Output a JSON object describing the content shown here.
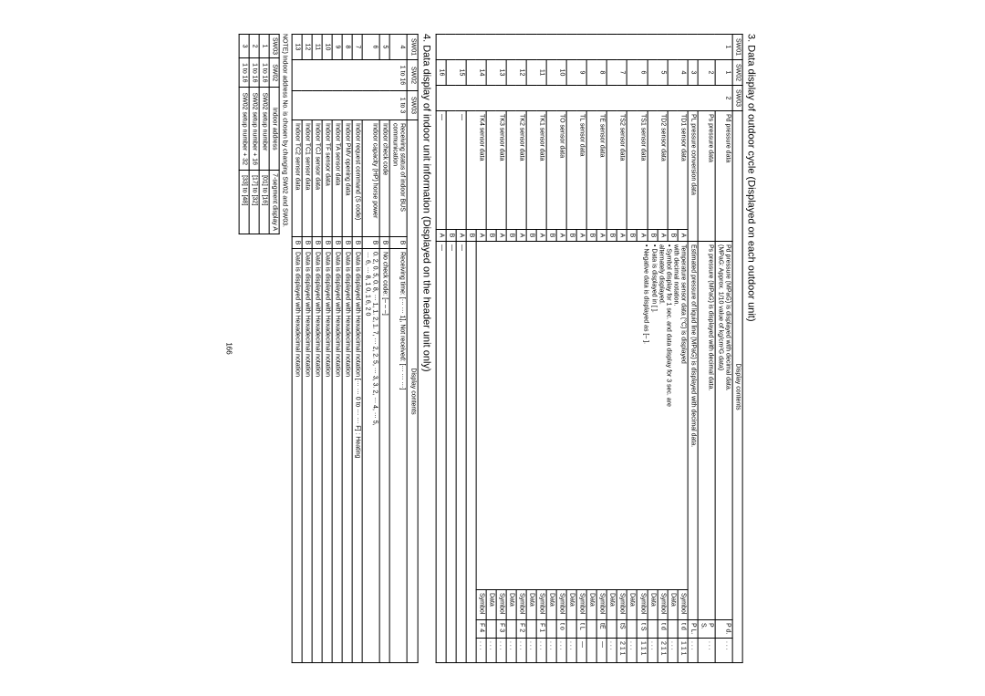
{
  "page_number": "166",
  "h1": "3. Data display of outdoor cycle (Displayed on each outdoor unit)",
  "h2": "4. Data display of indoor unit information (Displayed on the header unit only)",
  "note": "NOTE) Indoor address No. is chosen by changing SW02 and SW03.",
  "hdr": {
    "sw01": "SW01",
    "sw02": "SW02",
    "sw03": "SW03",
    "disp": "Display contents",
    "symbol": "Symbol",
    "data": "Data",
    "a": "A",
    "b": "B"
  },
  "t1": [
    {
      "sw01": "1",
      "sw02": "1",
      "sw03": "2",
      "d1": "Pd pressure data",
      "dc": "Pd pressure (MPaG) is displayed with decimal data.\n(MPaG: Approx. 1/10 value of kg/cm²G data)",
      "a": "P d.",
      "b": ". . ."
    },
    {
      "sw02": "2",
      "d1": "Ps pressure data",
      "dc": "Ps pressure (MPaG) is displayed with decimal data.",
      "a": "P S.",
      "b": ". . ."
    },
    {
      "sw02": "3",
      "d1": "PL pressure conversion data",
      "dc": "Estimated pressure of liquid line (MPaG) is displayed with decimal data.",
      "a": "P L.",
      "b": ". . ."
    },
    {
      "sw02": "4",
      "d1": "TD1 sensor data",
      "ab": "A",
      "dc": "Temperature sensor data (°C) is displayed\nwith decimal notation.\n• Symbol display for 1 sec. and data display for 3 sec. are\n  alternately displayed.\n• Data is displayed in [     ].\n• Negative data is displayed as [–     ].",
      "sym": "Symbol",
      "sa": "t d",
      "sb": "1 1 1"
    },
    {
      "ab": "B",
      "sym": "Data",
      "sa": "",
      "sb": ". . ."
    },
    {
      "sw02": "5",
      "d1": "TD2 sensor data",
      "ab": "A",
      "sym": "Symbol",
      "sa": "t d",
      "sb": "2 1 1"
    },
    {
      "ab": "B",
      "sym": "Data",
      "sa": "",
      "sb": ". . ."
    },
    {
      "sw02": "6",
      "d1": "TS1 sensor data",
      "ab": "A",
      "sym": "Symbol",
      "sa": "t S",
      "sb": "1 1 1"
    },
    {
      "ab": "B",
      "sym": "Data",
      "sa": "",
      "sb": ". . ."
    },
    {
      "sw02": "7",
      "d1": "TS2 sensor data",
      "ab": "A",
      "sym": "Symbol",
      "sa": "tS",
      "sb": "2 1 1"
    },
    {
      "ab": "B",
      "sym": "Data",
      "sa": "",
      "sb": ". . ."
    },
    {
      "sw02": "8",
      "d1": "TE sensor data",
      "ab": "A",
      "sym": "Symbol",
      "sa": "tE",
      "sb": "—"
    },
    {
      "ab": "B",
      "sym": "Data",
      "sa": "",
      "sb": ""
    },
    {
      "sw02": "9",
      "d1": "TL sensor data",
      "ab": "A",
      "sym": "Symbol",
      "sa": "t L",
      "sb": "—"
    },
    {
      "ab": "B",
      "sym": "Data",
      "sa": "",
      "sb": ". . ."
    },
    {
      "sw02": "10",
      "d1": "TO sensor data",
      "ab": "A",
      "sym": "Symbol",
      "sa": "t o",
      "sb": ". . ."
    },
    {
      "ab": "B",
      "sym": "Data",
      "sa": "",
      "sb": ". . ."
    },
    {
      "sw02": "11",
      "d1": "TK1 sensor data",
      "ab": "A",
      "sym": "Symbol",
      "sa": "F 1",
      "sb": ". . ."
    },
    {
      "ab": "B",
      "sym": "Data",
      "sa": "",
      "sb": ". . ."
    },
    {
      "sw02": "12",
      "d1": "TK2 sensor data",
      "ab": "A",
      "sym": "Symbol",
      "sa": "F 2",
      "sb": ". . ."
    },
    {
      "ab": "B",
      "sym": "Data",
      "sa": "",
      "sb": ". . ."
    },
    {
      "sw02": "13",
      "d1": "TK3 sensor data",
      "ab": "A",
      "sym": "Symbol",
      "sa": "F 3",
      "sb": ". . ."
    },
    {
      "ab": "B",
      "sym": "Data",
      "sa": "",
      "sb": ". . ."
    },
    {
      "sw02": "14",
      "d1": "TK4 sensor data",
      "ab": "A",
      "sym": "Symbol",
      "sa": "F 4",
      "sb": ". . ."
    },
    {
      "ab": "B",
      "sym": "Data",
      "sa": "",
      "sb": ". . ."
    },
    {
      "sw02": "15",
      "d1": "—",
      "ab": "A",
      "dc": "—",
      "plain": true
    },
    {
      "ab": "B",
      "dc": "—",
      "plain": true
    },
    {
      "sw02": "16",
      "d1": "—",
      "ab": "A",
      "dc": "—",
      "plain": true
    },
    {
      "ab": "B",
      "dc": "—",
      "plain": true
    }
  ],
  "t2": [
    {
      "sw01": "4",
      "sw02": "1 to 16",
      "sw03": "1 to 3",
      "d1": "Receiving status of indoor BUS communication",
      "ab": "B",
      "dc": "Receiving time: [··· ··· 1], Not received: [··· ··· ···]"
    },
    {
      "sw01": "5",
      "d1": "Indoor check code",
      "ab": "B",
      "dc": "No check code: [– – –]"
    },
    {
      "sw01": "6",
      "d1": "Indoor capacity (HP) horse power",
      "ab": "B",
      "dc": "0. 2,  0. 5,  0. 8, ···  1,  1. 2,  1. 7, ···  2,  2. 5, ···  3,  3. 2, ···  4, ···  5,\n···  6, ···  8,   1  0,   1  6,  2  0"
    },
    {
      "sw01": "7",
      "d1": "Indoor request command (S code)",
      "ab": "B",
      "dc": "Data is displayed with Hexadecimal notation [··· ··· 0 to ··· ··· F] : Heating"
    },
    {
      "sw01": "8",
      "d1": "Indoor PMV opening data",
      "ab": "B",
      "dc": "Data is displayed with Hexadecimal notation"
    },
    {
      "sw01": "9",
      "d1": "Indoor TA sensor data",
      "ab": "B",
      "dc": "Data is displayed with Hexadecimal notation"
    },
    {
      "sw01": "10",
      "d1": "Indoor TF sensor data",
      "ab": "B",
      "dc": "Data is displayed with Hexadecimal notation"
    },
    {
      "sw01": "11",
      "d1": "Indoor TCJ sensor data",
      "ab": "B",
      "dc": "Data is displayed with Hexadecimal notation"
    },
    {
      "sw01": "12",
      "d1": "Indoor TC1 sensor data",
      "ab": "B",
      "dc": "Data is displayed with Hexadecimal notation"
    },
    {
      "sw01": "13",
      "d1": "Indoor TC2 sensor data",
      "ab": "B",
      "dc": "Data is displayed with Hexadecimal notation"
    }
  ],
  "t3": {
    "h": [
      "SW03",
      "SW02",
      "Indoor address",
      "7-segment display A"
    ],
    "r": [
      [
        "1",
        "1 to 16",
        "SW02 setup number",
        "[01] to [16]"
      ],
      [
        "2",
        "1 to 16",
        "SW02 setup number + 16",
        "[17] to [32]"
      ],
      [
        "3",
        "1 to 16",
        "SW02 setup number + 32",
        "[33] to [48]"
      ]
    ]
  }
}
